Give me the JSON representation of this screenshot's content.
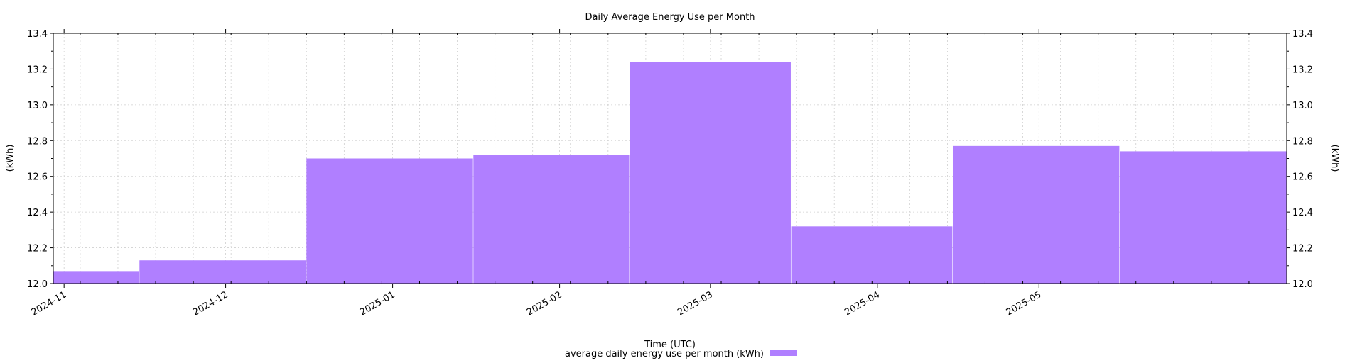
{
  "chart_data": {
    "type": "bar",
    "title": "Daily Average Energy Use per Month",
    "xlabel": "Time (UTC)",
    "ylabel_left": "(kWh)",
    "ylabel_right": "(kWh)",
    "ylim": [
      12.0,
      13.4
    ],
    "y_ticks": [
      "12.0",
      "12.2",
      "12.4",
      "12.6",
      "12.8",
      "13.0",
      "13.2",
      "13.4"
    ],
    "x_range": [
      "2024-10-30",
      "2025-06-16"
    ],
    "x_ticks": [
      {
        "date": "2024-11-01",
        "label": "2024-11"
      },
      {
        "date": "2024-12-01",
        "label": "2024-12"
      },
      {
        "date": "2025-01-01",
        "label": "2025-01"
      },
      {
        "date": "2025-02-01",
        "label": "2025-02"
      },
      {
        "date": "2025-03-01",
        "label": "2025-03"
      },
      {
        "date": "2025-04-01",
        "label": "2025-04"
      },
      {
        "date": "2025-05-01",
        "label": "2025-05"
      }
    ],
    "grid": true,
    "legend_position": "bottom-center",
    "series": [
      {
        "name": "average daily energy use per month (kWh)",
        "color": "#b07fff",
        "bars": [
          {
            "start": "2024-10-30",
            "end": "2024-11-15",
            "value": 12.07
          },
          {
            "start": "2024-11-15",
            "end": "2024-12-16",
            "value": 12.13
          },
          {
            "start": "2024-12-16",
            "end": "2025-01-16",
            "value": 12.7
          },
          {
            "start": "2025-01-16",
            "end": "2025-02-14",
            "value": 12.72
          },
          {
            "start": "2025-02-14",
            "end": "2025-03-16",
            "value": 13.24
          },
          {
            "start": "2025-03-16",
            "end": "2025-04-15",
            "value": 12.32
          },
          {
            "start": "2025-04-15",
            "end": "2025-05-16",
            "value": 12.77
          },
          {
            "start": "2025-05-16",
            "end": "2025-06-16",
            "value": 12.74
          }
        ]
      }
    ]
  }
}
